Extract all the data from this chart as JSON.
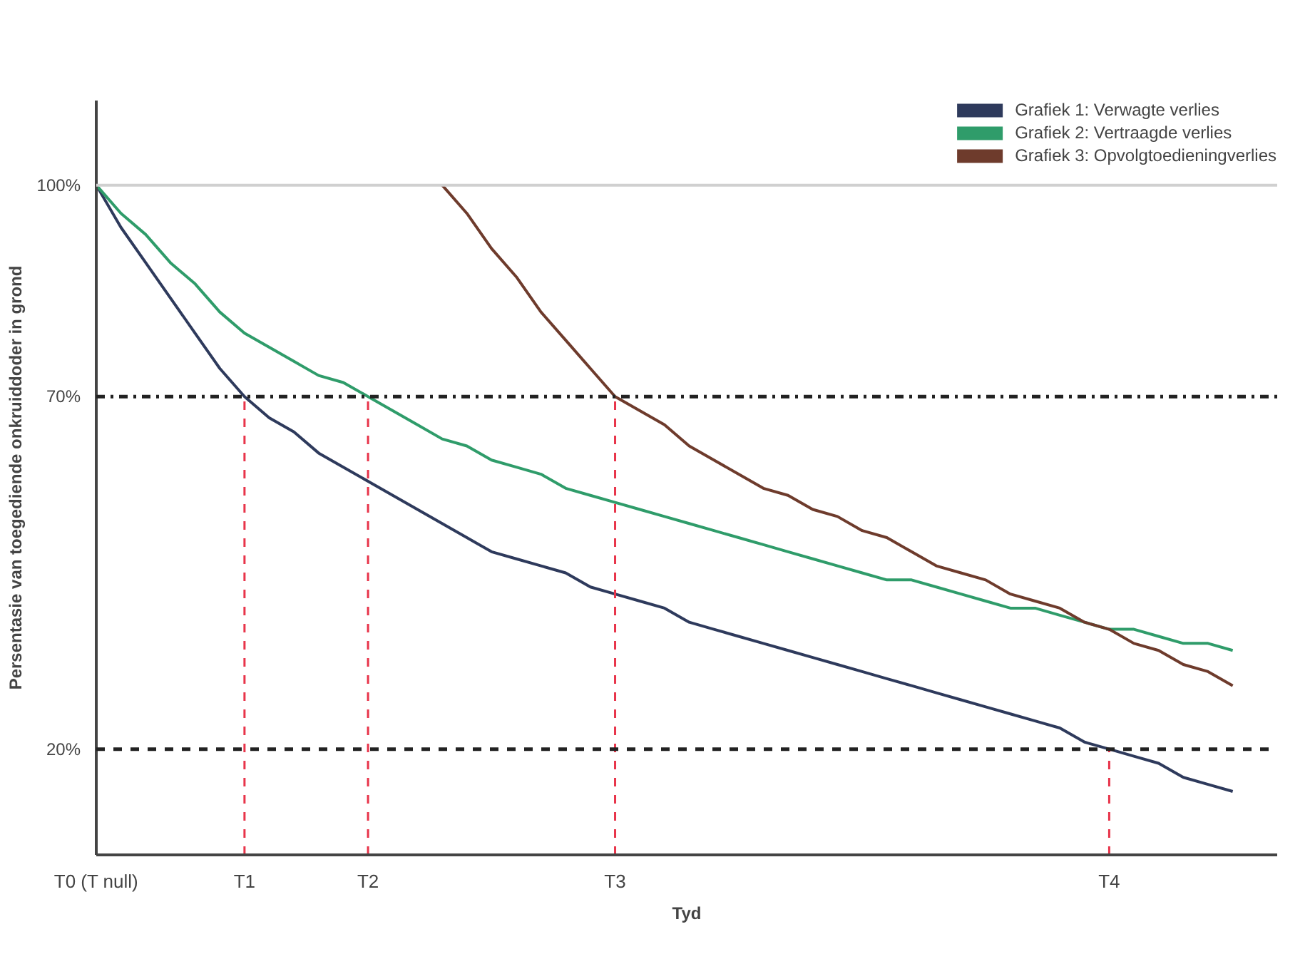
{
  "chart_data": {
    "type": "line",
    "xlabel": "Tyd",
    "ylabel": "Persentasie van toegediende onkruiddoder in grond",
    "categories": [
      "T0 (T null)",
      null,
      null,
      null,
      null,
      null,
      "T1",
      null,
      null,
      null,
      null,
      "T2",
      null,
      null,
      null,
      null,
      null,
      null,
      null,
      null,
      null,
      "T3",
      null,
      null,
      null,
      null,
      null,
      null,
      null,
      null,
      null,
      null,
      null,
      null,
      null,
      null,
      null,
      null,
      null,
      null,
      null,
      "T4",
      null,
      null,
      null,
      null,
      null
    ],
    "ylim": [
      5,
      112
    ],
    "yticks": [
      {
        "value": 20,
        "label": "20%"
      },
      {
        "value": 70,
        "label": "70%"
      },
      {
        "value": 100,
        "label": "100%"
      }
    ],
    "grid": false,
    "legend": "top right",
    "line_style": "solid",
    "marker": "none",
    "series": [
      {
        "name": "Grafiek 1: Verwagte verlies",
        "color": "#2e3a5c",
        "values": [
          100,
          94,
          89,
          84,
          79,
          74,
          70,
          67,
          65,
          62,
          60,
          58,
          56,
          54,
          52,
          50,
          48,
          47,
          46,
          45,
          43,
          42,
          41,
          40,
          38,
          37,
          36,
          35,
          34,
          33,
          32,
          31,
          30,
          29,
          28,
          27,
          26,
          25,
          24,
          23,
          21,
          20,
          19,
          18,
          16,
          15,
          14
        ]
      },
      {
        "name": "Grafiek 2: Vertraagde verlies",
        "color": "#2f9c6a",
        "values": [
          100,
          96,
          93,
          89,
          86,
          82,
          79,
          77,
          75,
          73,
          72,
          70,
          68,
          66,
          64,
          63,
          61,
          60,
          59,
          57,
          56,
          55,
          54,
          53,
          52,
          51,
          50,
          49,
          48,
          47,
          46,
          45,
          44,
          44,
          43,
          42,
          41,
          40,
          40,
          39,
          38,
          37,
          37,
          36,
          35,
          35,
          34
        ]
      },
      {
        "name": "Grafiek 3: Opvolgtoedieningverlies",
        "color": "#6e3b2c",
        "values": [
          null,
          null,
          null,
          null,
          null,
          null,
          null,
          null,
          null,
          null,
          null,
          null,
          null,
          null,
          100,
          96,
          91,
          87,
          82,
          78,
          74,
          70,
          68,
          66,
          63,
          61,
          59,
          57,
          56,
          54,
          53,
          51,
          50,
          48,
          46,
          45,
          44,
          42,
          41,
          40,
          38,
          37,
          35,
          34,
          32,
          31,
          29
        ]
      },
      {
        "color": "#e8344a",
        "line_style": "dashed",
        "x": [
          "T1",
          "T1"
        ],
        "values": [
          5,
          70
        ]
      },
      {
        "color": "#e8344a",
        "line_style": "dashed",
        "x": [
          "T2",
          "T2"
        ],
        "values": [
          5,
          70
        ]
      },
      {
        "color": "#e8344a",
        "line_style": "dashed",
        "x": [
          "T3",
          "T3"
        ],
        "values": [
          5,
          70
        ]
      },
      {
        "color": "#e8344a",
        "line_style": "dashed",
        "x": [
          "T4",
          "T4"
        ],
        "values": [
          5,
          20
        ]
      }
    ],
    "ref_lines": [
      {
        "axis": "y",
        "value": 100,
        "color": "#d0d0d0",
        "line_style": "solid"
      },
      {
        "axis": "y",
        "value": 70,
        "color": "#222222",
        "line_style": "dashdot"
      },
      {
        "axis": "y",
        "value": 20,
        "color": "#222222",
        "line_style": "dashed"
      }
    ]
  }
}
